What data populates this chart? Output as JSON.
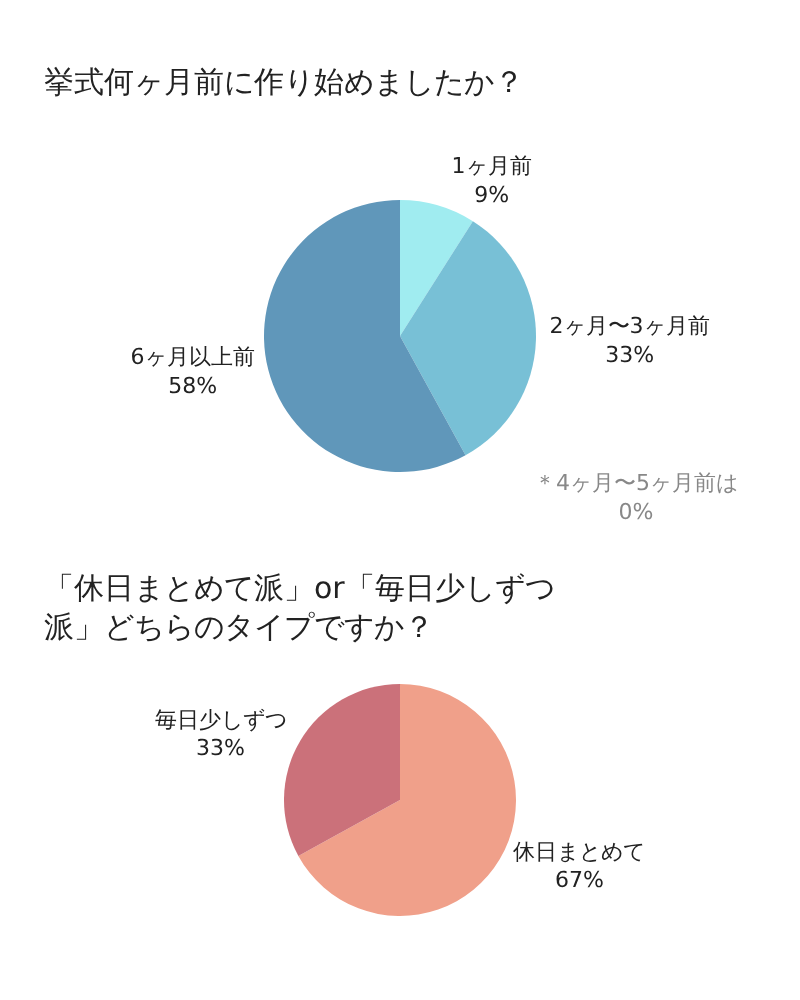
{
  "chart_data": [
    {
      "type": "pie",
      "title": "挙式何ヶ月前に作り始めましたか？",
      "categories": [
        "1ヶ月前",
        "2ヶ月〜3ヶ月前",
        "6ヶ月以上前"
      ],
      "values": [
        9,
        33,
        58
      ],
      "colors": [
        "#a0ecf0",
        "#78c0d6",
        "#6097ba"
      ],
      "value_labels": [
        "9%",
        "33%",
        "58%"
      ],
      "annotations": [
        "＊4ヶ月〜5ヶ月前は\n0%"
      ]
    },
    {
      "type": "pie",
      "title": "「休日まとめて派」or「毎日少しずつ派」どちらのタイプですか？",
      "categories": [
        "休日まとめて",
        "毎日少しずつ"
      ],
      "values": [
        67,
        33
      ],
      "colors": [
        "#f0a08a",
        "#cb717a"
      ],
      "value_labels": [
        "67%",
        "33%"
      ]
    }
  ]
}
